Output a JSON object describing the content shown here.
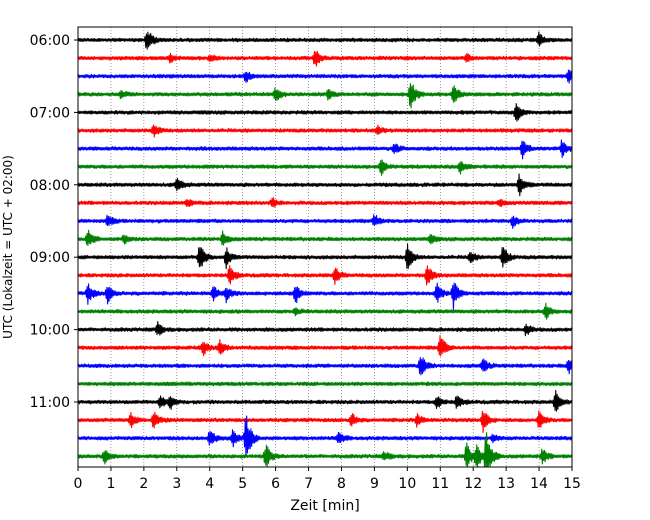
{
  "chart_data": {
    "type": "line",
    "title": "",
    "xlabel": "Zeit  [min]",
    "ylabel": "UTC (Lokalzeit = UTC + 02:00)",
    "xlim": [
      0,
      15
    ],
    "x_ticks": [
      0,
      1,
      2,
      3,
      4,
      5,
      6,
      7,
      8,
      9,
      10,
      11,
      12,
      13,
      14,
      15
    ],
    "y_tick_labels": [
      "06:00",
      "07:00",
      "08:00",
      "09:00",
      "10:00",
      "11:00"
    ],
    "y_tick_rows": [
      0,
      4,
      8,
      12,
      16,
      20
    ],
    "vertical_grid": "dotted",
    "minutes_per_row": 15,
    "trace_colors": [
      "#000000",
      "#ff0000",
      "#0000ff",
      "#008000"
    ],
    "rows": [
      {
        "start": "06:00",
        "events": [
          {
            "t": 2.1,
            "amp": 1.0
          },
          {
            "t": 14.0,
            "amp": 0.55
          }
        ]
      },
      {
        "start": "06:15",
        "events": [
          {
            "t": 2.8,
            "amp": 0.3
          },
          {
            "t": 4.0,
            "amp": 0.3
          },
          {
            "t": 7.2,
            "amp": 0.75
          },
          {
            "t": 11.8,
            "amp": 0.3
          }
        ]
      },
      {
        "start": "06:30",
        "events": [
          {
            "t": 5.1,
            "amp": 0.45
          },
          {
            "t": 14.9,
            "amp": 0.55
          }
        ]
      },
      {
        "start": "06:45",
        "events": [
          {
            "t": 1.3,
            "amp": 0.3
          },
          {
            "t": 6.0,
            "amp": 0.55
          },
          {
            "t": 7.6,
            "amp": 0.45
          },
          {
            "t": 10.1,
            "amp": 1.2
          },
          {
            "t": 11.4,
            "amp": 0.8
          }
        ]
      },
      {
        "start": "07:00",
        "events": [
          {
            "t": 13.3,
            "amp": 0.85
          }
        ]
      },
      {
        "start": "07:15",
        "events": [
          {
            "t": 2.3,
            "amp": 0.55
          },
          {
            "t": 9.1,
            "amp": 0.3
          }
        ]
      },
      {
        "start": "07:30",
        "events": [
          {
            "t": 9.6,
            "amp": 0.45
          },
          {
            "t": 13.5,
            "amp": 0.8
          },
          {
            "t": 14.7,
            "amp": 0.8
          }
        ]
      },
      {
        "start": "07:45",
        "events": [
          {
            "t": 9.2,
            "amp": 0.6
          },
          {
            "t": 11.6,
            "amp": 0.55
          }
        ]
      },
      {
        "start": "08:00",
        "events": [
          {
            "t": 3.0,
            "amp": 0.6
          },
          {
            "t": 13.4,
            "amp": 0.9
          }
        ]
      },
      {
        "start": "08:15",
        "events": [
          {
            "t": 3.3,
            "amp": 0.3
          },
          {
            "t": 5.9,
            "amp": 0.4
          },
          {
            "t": 12.8,
            "amp": 0.3
          }
        ]
      },
      {
        "start": "08:30",
        "events": [
          {
            "t": 0.9,
            "amp": 0.55
          },
          {
            "t": 9.0,
            "amp": 0.5
          },
          {
            "t": 13.2,
            "amp": 0.45
          }
        ]
      },
      {
        "start": "08:45",
        "events": [
          {
            "t": 0.3,
            "amp": 0.7
          },
          {
            "t": 1.4,
            "amp": 0.35
          },
          {
            "t": 4.4,
            "amp": 0.6
          },
          {
            "t": 10.7,
            "amp": 0.3
          }
        ]
      },
      {
        "start": "09:00",
        "events": [
          {
            "t": 3.7,
            "amp": 1.1
          },
          {
            "t": 4.5,
            "amp": 0.8
          },
          {
            "t": 10.0,
            "amp": 1.2
          },
          {
            "t": 11.9,
            "amp": 0.5
          },
          {
            "t": 12.9,
            "amp": 1.0
          }
        ]
      },
      {
        "start": "09:15",
        "events": [
          {
            "t": 4.6,
            "amp": 0.8
          },
          {
            "t": 7.8,
            "amp": 0.7
          },
          {
            "t": 10.6,
            "amp": 0.8
          }
        ]
      },
      {
        "start": "09:30",
        "events": [
          {
            "t": 0.3,
            "amp": 0.85
          },
          {
            "t": 0.9,
            "amp": 0.75
          },
          {
            "t": 4.1,
            "amp": 0.6
          },
          {
            "t": 4.5,
            "amp": 0.6
          },
          {
            "t": 6.6,
            "amp": 0.9
          },
          {
            "t": 10.9,
            "amp": 0.75
          },
          {
            "t": 11.4,
            "amp": 1.2
          }
        ]
      },
      {
        "start": "09:45",
        "events": [
          {
            "t": 6.6,
            "amp": 0.3
          },
          {
            "t": 14.2,
            "amp": 0.6
          }
        ]
      },
      {
        "start": "10:00",
        "events": [
          {
            "t": 2.4,
            "amp": 0.6
          },
          {
            "t": 13.6,
            "amp": 0.45
          }
        ]
      },
      {
        "start": "10:15",
        "events": [
          {
            "t": 3.8,
            "amp": 0.6
          },
          {
            "t": 4.3,
            "amp": 0.55
          },
          {
            "t": 11.0,
            "amp": 1.1
          }
        ]
      },
      {
        "start": "10:30",
        "events": [
          {
            "t": 10.4,
            "amp": 1.0
          },
          {
            "t": 12.3,
            "amp": 0.55
          },
          {
            "t": 14.9,
            "amp": 0.55
          }
        ]
      },
      {
        "start": "10:45",
        "events": []
      },
      {
        "start": "11:00",
        "events": [
          {
            "t": 2.5,
            "amp": 0.5
          },
          {
            "t": 2.8,
            "amp": 0.6
          },
          {
            "t": 10.9,
            "amp": 0.5
          },
          {
            "t": 11.5,
            "amp": 0.55
          },
          {
            "t": 14.5,
            "amp": 0.9
          }
        ]
      },
      {
        "start": "11:15",
        "events": [
          {
            "t": 1.6,
            "amp": 0.6
          },
          {
            "t": 2.3,
            "amp": 0.7
          },
          {
            "t": 8.3,
            "amp": 0.55
          },
          {
            "t": 10.3,
            "amp": 0.5
          },
          {
            "t": 12.3,
            "amp": 1.0
          },
          {
            "t": 14.0,
            "amp": 0.8
          }
        ]
      },
      {
        "start": "11:30",
        "events": [
          {
            "t": 4.0,
            "amp": 0.7
          },
          {
            "t": 4.7,
            "amp": 0.6
          },
          {
            "t": 5.1,
            "amp": 2.2
          },
          {
            "t": 7.9,
            "amp": 0.55
          },
          {
            "t": 12.6,
            "amp": 0.3
          }
        ]
      },
      {
        "start": "11:45",
        "events": [
          {
            "t": 0.8,
            "amp": 0.6
          },
          {
            "t": 5.7,
            "amp": 1.1
          },
          {
            "t": 9.3,
            "amp": 0.4
          },
          {
            "t": 11.8,
            "amp": 1.1
          },
          {
            "t": 12.1,
            "amp": 1.0
          },
          {
            "t": 12.4,
            "amp": 2.2
          },
          {
            "t": 14.1,
            "amp": 0.6
          }
        ]
      }
    ]
  }
}
